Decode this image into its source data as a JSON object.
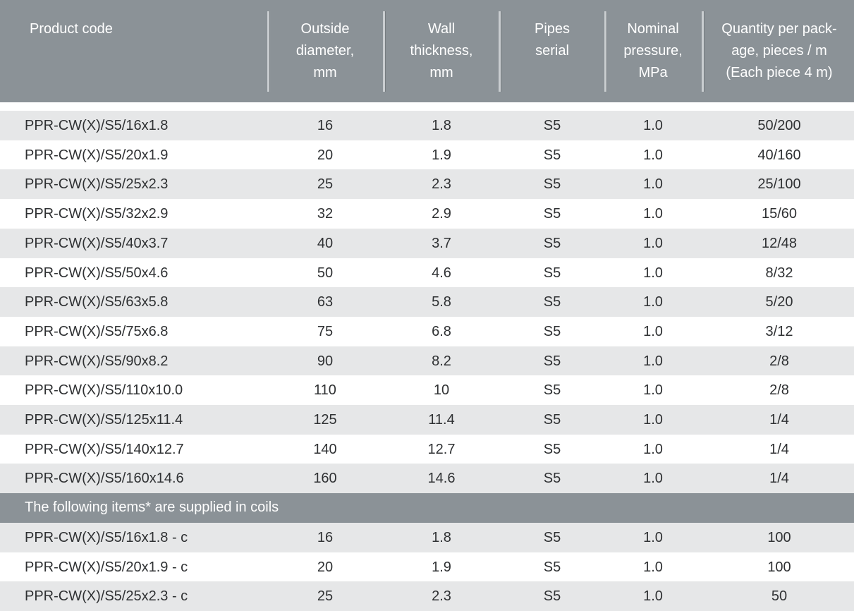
{
  "header": {
    "columns": [
      [
        "Product code"
      ],
      [
        "Outside",
        "diameter,",
        "mm"
      ],
      [
        "Wall",
        "thickness,",
        "mm"
      ],
      [
        "Pipes",
        "serial"
      ],
      [
        "Nominal",
        "pressure,",
        "MPa"
      ],
      [
        "Quantity per pack-",
        "age, pieces / m",
        "(Each piece 4 m)"
      ]
    ]
  },
  "table": {
    "rows": [
      [
        "PPR-CW(X)/S5/16x1.8",
        "16",
        "1.8",
        "S5",
        "1.0",
        "50/200"
      ],
      [
        "PPR-CW(X)/S5/20x1.9",
        "20",
        "1.9",
        "S5",
        "1.0",
        "40/160"
      ],
      [
        "PPR-CW(X)/S5/25x2.3",
        "25",
        "2.3",
        "S5",
        "1.0",
        "25/100"
      ],
      [
        "PPR-CW(X)/S5/32x2.9",
        "32",
        "2.9",
        "S5",
        "1.0",
        "15/60"
      ],
      [
        "PPR-CW(X)/S5/40x3.7",
        "40",
        "3.7",
        "S5",
        "1.0",
        "12/48"
      ],
      [
        "PPR-CW(X)/S5/50x4.6",
        "50",
        "4.6",
        "S5",
        "1.0",
        "8/32"
      ],
      [
        "PPR-CW(X)/S5/63x5.8",
        "63",
        "5.8",
        "S5",
        "1.0",
        "5/20"
      ],
      [
        "PPR-CW(X)/S5/75x6.8",
        "75",
        "6.8",
        "S5",
        "1.0",
        "3/12"
      ],
      [
        "PPR-CW(X)/S5/90x8.2",
        "90",
        "8.2",
        "S5",
        "1.0",
        "2/8"
      ],
      [
        "PPR-CW(X)/S5/110x10.0",
        "110",
        "10",
        "S5",
        "1.0",
        "2/8"
      ],
      [
        "PPR-CW(X)/S5/125x11.4",
        "125",
        "11.4",
        "S5",
        "1.0",
        "1/4"
      ],
      [
        "PPR-CW(X)/S5/140x12.7",
        "140",
        "12.7",
        "S5",
        "1.0",
        "1/4"
      ],
      [
        "PPR-CW(X)/S5/160x14.6",
        "160",
        "14.6",
        "S5",
        "1.0",
        "1/4"
      ]
    ],
    "coils_note": "The following items* are supplied in coils",
    "coil_rows": [
      [
        "PPR-CW(X)/S5/16x1.8 - c",
        "16",
        "1.8",
        "S5",
        "1.0",
        "100"
      ],
      [
        "PPR-CW(X)/S5/20x1.9 - c",
        "20",
        "1.9",
        "S5",
        "1.0",
        "100"
      ],
      [
        "PPR-CW(X)/S5/25x2.3 - c",
        "25",
        "2.3",
        "S5",
        "1.0",
        "50"
      ]
    ]
  }
}
